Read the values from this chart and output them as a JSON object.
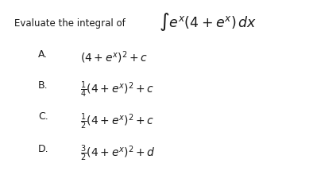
{
  "background_color": "#ffffff",
  "intro_text": "Evaluate the integral of",
  "integral_expr": "$\\int e^x(4 + e^x)\\, dx$",
  "options": [
    {
      "label": "A.",
      "expr": "$(4 + e^x)^2 + c$"
    },
    {
      "label": "B.",
      "expr": "$\\frac{1}{4}(4 + e^x)^2 + c$"
    },
    {
      "label": "C.",
      "expr": "$\\frac{1}{2}(4 + e^x)^2 + c$"
    },
    {
      "label": "D.",
      "expr": "$\\frac{3}{2}(4 + e^x)^2 + d$"
    }
  ],
  "intro_fontsize": 8.5,
  "integral_fontsize": 12.5,
  "option_fontsize": 10,
  "label_fontsize": 9,
  "text_color": "#1a1a1a"
}
